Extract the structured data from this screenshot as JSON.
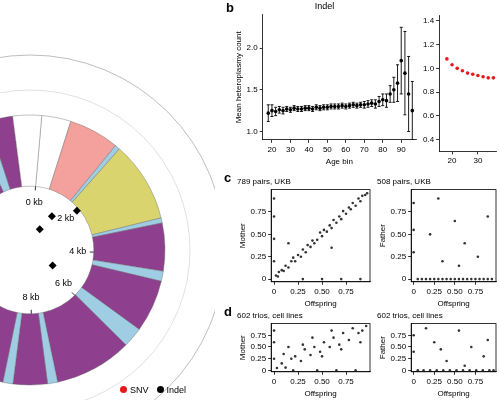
{
  "chart_data": [
    {
      "type": "doughnut",
      "categories": [
        null,
        null,
        null,
        null,
        null,
        null,
        null,
        null,
        null,
        null,
        null,
        null,
        null,
        null,
        null,
        null,
        null,
        null,
        null,
        null,
        null,
        null,
        null,
        null,
        null
      ],
      "values": [
        0.58,
        1.0,
        0.1,
        1.6,
        0.1,
        0.95,
        0.2,
        1.04,
        0.4,
        1.54,
        0.2,
        0.68,
        0.2,
        0.84,
        0.2,
        0.35,
        0.2,
        1.38,
        0.2,
        1.81,
        0.5,
        1.14,
        0.3,
        0.489,
        0.57
      ],
      "colors": [
        "#ffffff",
        "#f4a09c",
        "#9fcde3",
        "#d9d46e",
        "#9fcde3",
        "#8e3f8e",
        "#9fcde3",
        "#8e3f8e",
        "#9fcde3",
        "#8e3f8e",
        "#9fcde3",
        "#8e3f8e",
        "#9fcde3",
        "#8e3f8e",
        "#9fcde3",
        "#8e3f8e",
        "#9fcde3",
        "#8e3f8e",
        "#9fcde3",
        "#8e3f8e",
        "#9fcde3",
        "#8e3f8e",
        "#9fcde3",
        "#8e3f8e",
        "#ffffff"
      ],
      "xlim": [
        0,
        16.569
      ],
      "xticks": [
        {
          "value": 0,
          "label": "0 kb"
        },
        {
          "value": 2,
          "label": "2 kb"
        },
        {
          "value": 4,
          "label": "4 kb"
        },
        {
          "value": 6,
          "label": "6 kb"
        },
        {
          "value": 8,
          "label": "8 kb"
        }
      ],
      "series": [
        {
          "name": "SNV",
          "color": "#e41a1c",
          "marker": "circle",
          "x": [],
          "values": []
        },
        {
          "name": "Indel",
          "color": "#000000",
          "marker": "diamond",
          "x": [
            2.07,
            1.29,
            0.93,
            5.5
          ],
          "values": [
            0.96,
            0.63,
            0.36,
            0.43
          ]
        }
      ],
      "legend": "bottom"
    },
    {
      "type": "scatter",
      "title": "Indel",
      "xlabel": "Age bin",
      "ylabel": "Mean heteroplasmy count",
      "x": [
        18,
        20,
        22,
        24,
        26,
        28,
        30,
        32,
        34,
        36,
        38,
        40,
        42,
        44,
        46,
        48,
        50,
        52,
        54,
        56,
        58,
        60,
        62,
        64,
        66,
        68,
        70,
        72,
        74,
        76,
        78,
        80,
        82,
        84,
        86,
        88,
        90,
        92,
        94,
        96
      ],
      "values": [
        1.22,
        1.25,
        1.24,
        1.26,
        1.25,
        1.27,
        1.26,
        1.28,
        1.27,
        1.27,
        1.28,
        1.28,
        1.27,
        1.29,
        1.28,
        1.29,
        1.29,
        1.3,
        1.3,
        1.3,
        1.31,
        1.3,
        1.31,
        1.32,
        1.31,
        1.32,
        1.32,
        1.33,
        1.34,
        1.33,
        1.36,
        1.38,
        1.37,
        1.45,
        1.5,
        1.58,
        1.85,
        1.7,
        1.45,
        1.25
      ],
      "errors": [
        0.1,
        0.07,
        0.05,
        0.04,
        0.04,
        0.03,
        0.03,
        0.03,
        0.03,
        0.03,
        0.03,
        0.03,
        0.03,
        0.03,
        0.03,
        0.03,
        0.03,
        0.03,
        0.03,
        0.03,
        0.03,
        0.03,
        0.03,
        0.03,
        0.03,
        0.03,
        0.04,
        0.04,
        0.04,
        0.05,
        0.06,
        0.07,
        0.08,
        0.1,
        0.15,
        0.22,
        0.4,
        0.5,
        0.45,
        0.35
      ],
      "color": "#000000",
      "marker": "circle",
      "xlim": [
        15,
        98
      ],
      "xticks": [
        20,
        30,
        40,
        50,
        60,
        70,
        80,
        90
      ],
      "ylim": [
        0.9,
        2.4
      ],
      "yticks": [
        {
          "value": 1,
          "label": "1.0"
        },
        {
          "value": 1.5,
          "label": "1.5"
        },
        {
          "value": 2,
          "label": "2.0"
        }
      ],
      "grid": false,
      "annotations": [
        "b"
      ]
    },
    {
      "type": "scatter",
      "x": [
        18,
        20,
        22,
        24,
        26,
        28,
        30,
        32,
        34,
        36
      ],
      "values": [
        1.08,
        1.03,
        1.0,
        0.98,
        0.96,
        0.95,
        0.94,
        0.93,
        0.92,
        0.92
      ],
      "color": "#e41a1c",
      "marker": "circle",
      "xlim": [
        15,
        37
      ],
      "xticks": [
        20,
        30
      ],
      "ylim": [
        0.3,
        1.45
      ],
      "yticks": [
        0.4,
        0.6,
        0.8,
        {
          "value": 1,
          "label": "1.0"
        },
        1.2,
        1.4
      ],
      "grid": false
    },
    {
      "type": "scatter",
      "title": "789 pairs, UKB",
      "xlabel": "Offspring",
      "ylabel": "Mother",
      "x": [
        0.02,
        0.04,
        0.05,
        0.08,
        0.1,
        0.12,
        0.15,
        0.18,
        0.2,
        0.22,
        0.25,
        0.28,
        0.3,
        0.33,
        0.35,
        0.38,
        0.4,
        0.42,
        0.45,
        0.48,
        0.5,
        0.52,
        0.55,
        0.58,
        0.6,
        0.62,
        0.65,
        0.68,
        0.7,
        0.72,
        0.75,
        0.78,
        0.8,
        0.82,
        0.85,
        0.88,
        0.9,
        0.92,
        0.95,
        0.97,
        0,
        0,
        0,
        0,
        0.3,
        0.5,
        0.7,
        0.9,
        0.15,
        0.6
      ],
      "values": [
        0.04,
        0.03,
        0.08,
        0.1,
        0.09,
        0.15,
        0.13,
        0.2,
        0.24,
        0.2,
        0.27,
        0.25,
        0.33,
        0.3,
        0.38,
        0.36,
        0.43,
        0.4,
        0.44,
        0.52,
        0.48,
        0.55,
        0.53,
        0.6,
        0.57,
        0.66,
        0.63,
        0.7,
        0.67,
        0.76,
        0.73,
        0.8,
        0.78,
        0.85,
        0.82,
        0.9,
        0.87,
        0.93,
        0.94,
        0.96,
        0.2,
        0.45,
        0.7,
        0.9,
        0,
        0,
        0,
        0,
        0.4,
        0.35
      ],
      "color": "#333333",
      "marker": "circle",
      "xlim": [
        -0.03,
        1
      ],
      "xticks": [
        0,
        0.25,
        {
          "value": 0.5,
          "label": "0.50"
        },
        0.75
      ],
      "ylim": [
        -0.03,
        1
      ],
      "yticks": [
        0,
        0.25,
        {
          "value": 0.5,
          "label": "0.50"
        },
        0.75
      ],
      "grid": false,
      "annotations": [
        "c"
      ]
    },
    {
      "type": "scatter",
      "title": "508 pairs, UKB",
      "xlabel": "Offspring",
      "ylabel": "Father",
      "x": [
        0.05,
        0.1,
        0.15,
        0.2,
        0.25,
        0.3,
        0.35,
        0.4,
        0.45,
        0.5,
        0.55,
        0.6,
        0.65,
        0.7,
        0.75,
        0.8,
        0.85,
        0.9,
        0.95,
        0,
        0,
        0,
        0.2,
        0.35,
        0.5,
        0.62,
        0.78,
        0.9,
        0.3,
        0.55
      ],
      "values": [
        0,
        0,
        0,
        0,
        0,
        0,
        0,
        0,
        0,
        0,
        0,
        0,
        0,
        0,
        0,
        0,
        0,
        0,
        0,
        0.3,
        0.55,
        0.85,
        0.5,
        0.2,
        0.65,
        0.4,
        0.25,
        0.7,
        0.9,
        0.15
      ],
      "color": "#333333",
      "marker": "circle",
      "xlim": [
        -0.03,
        1
      ],
      "xticks": [
        0,
        0.25,
        {
          "value": 0.5,
          "label": "0.50"
        },
        0.75
      ],
      "ylim": [
        -0.03,
        1
      ],
      "yticks": [
        0,
        0.25,
        {
          "value": 0.5,
          "label": "0.50"
        },
        0.75
      ],
      "grid": false
    },
    {
      "type": "scatter",
      "title": "602 trios, cell lines",
      "xlabel": "Offspring",
      "ylabel": "Mother",
      "x": [
        0.03,
        0.08,
        0.12,
        0.18,
        0.22,
        0.28,
        0.32,
        0.38,
        0.42,
        0.48,
        0.52,
        0.58,
        0.62,
        0.68,
        0.72,
        0.78,
        0.82,
        0.88,
        0.92,
        0.96,
        0.1,
        0.3,
        0.5,
        0.7,
        0.9,
        0,
        0,
        0,
        0.2,
        0.45,
        0.65,
        0.85,
        0.4,
        0.15,
        0.6
      ],
      "values": [
        0.05,
        0.15,
        0.06,
        0.25,
        0.3,
        0.2,
        0.45,
        0.33,
        0.5,
        0.4,
        0.6,
        0.5,
        0.7,
        0.55,
        0.8,
        0.65,
        0.9,
        0.8,
        0.85,
        0.95,
        0.35,
        0.55,
        0.3,
        0.45,
        0.6,
        0.25,
        0.6,
        0.85,
        0,
        0,
        0,
        0,
        0.7,
        0.5,
        0.85
      ],
      "color": "#333333",
      "marker": "circle",
      "xlim": [
        -0.03,
        1
      ],
      "xticks": [
        0,
        0.25,
        {
          "value": 0.5,
          "label": "0.50"
        },
        0.75
      ],
      "ylim": [
        -0.03,
        1
      ],
      "yticks": [
        0,
        0.25,
        {
          "value": 0.5,
          "label": "0.50"
        },
        0.75
      ],
      "grid": false,
      "annotations": [
        "d"
      ]
    },
    {
      "type": "scatter",
      "title": "602 trios, cell lines",
      "xlabel": "Offspring",
      "ylabel": "Father",
      "x": [
        0.05,
        0.12,
        0.2,
        0.28,
        0.36,
        0.44,
        0.52,
        0.6,
        0.68,
        0.76,
        0.84,
        0.92,
        0.97,
        0,
        0,
        0.25,
        0.4,
        0.55,
        0.7,
        0.85,
        0.15,
        0.62,
        0.33,
        0.9
      ],
      "values": [
        0,
        0,
        0,
        0,
        0,
        0,
        0,
        0,
        0,
        0,
        0,
        0,
        0,
        0.4,
        0.75,
        0.6,
        0.2,
        0.85,
        0.5,
        0.3,
        0.9,
        0.1,
        0.45,
        0.65
      ],
      "color": "#333333",
      "marker": "circle",
      "xlim": [
        -0.03,
        1
      ],
      "xticks": [
        0,
        0.25,
        {
          "value": 0.5,
          "label": "0.50"
        },
        0.75
      ],
      "ylim": [
        -0.03,
        1
      ],
      "yticks": [
        0,
        0.25,
        {
          "value": 0.5,
          "label": "0.50"
        },
        0.75
      ],
      "grid": false
    }
  ]
}
